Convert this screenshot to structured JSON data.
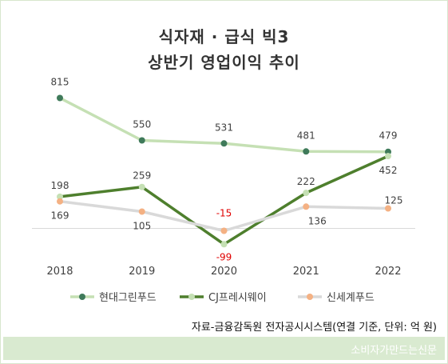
{
  "title_line1": "식자재 · 급식 빅3",
  "title_line2": "상반기 영업이익 추이",
  "source": "자료-금융감독원 전자공시시스템(연결 기준, 단위: 억 원)",
  "footer_credit": "소비자가만드는신문",
  "chart_data": {
    "type": "line",
    "title": "식자재 · 급식 빅3 상반기 영업이익 추이",
    "x": [
      "2018",
      "2019",
      "2020",
      "2021",
      "2022"
    ],
    "ylim": [
      -130,
      900
    ],
    "grid": false,
    "legend_position": "bottom",
    "series": [
      {
        "name": "현대그린푸드",
        "values": [
          815,
          550,
          531,
          481,
          479
        ],
        "color": "#c5e0b4",
        "marker": "#3f7a5a"
      },
      {
        "name": "CJ프레시웨이",
        "values": [
          198,
          259,
          -99,
          222,
          452
        ],
        "color": "#4e7f2d",
        "marker": "#c5e0b4"
      },
      {
        "name": "신세계푸드",
        "values": [
          169,
          105,
          -15,
          136,
          125
        ],
        "color": "#d9d9d9",
        "marker": "#f4b183"
      }
    ]
  }
}
